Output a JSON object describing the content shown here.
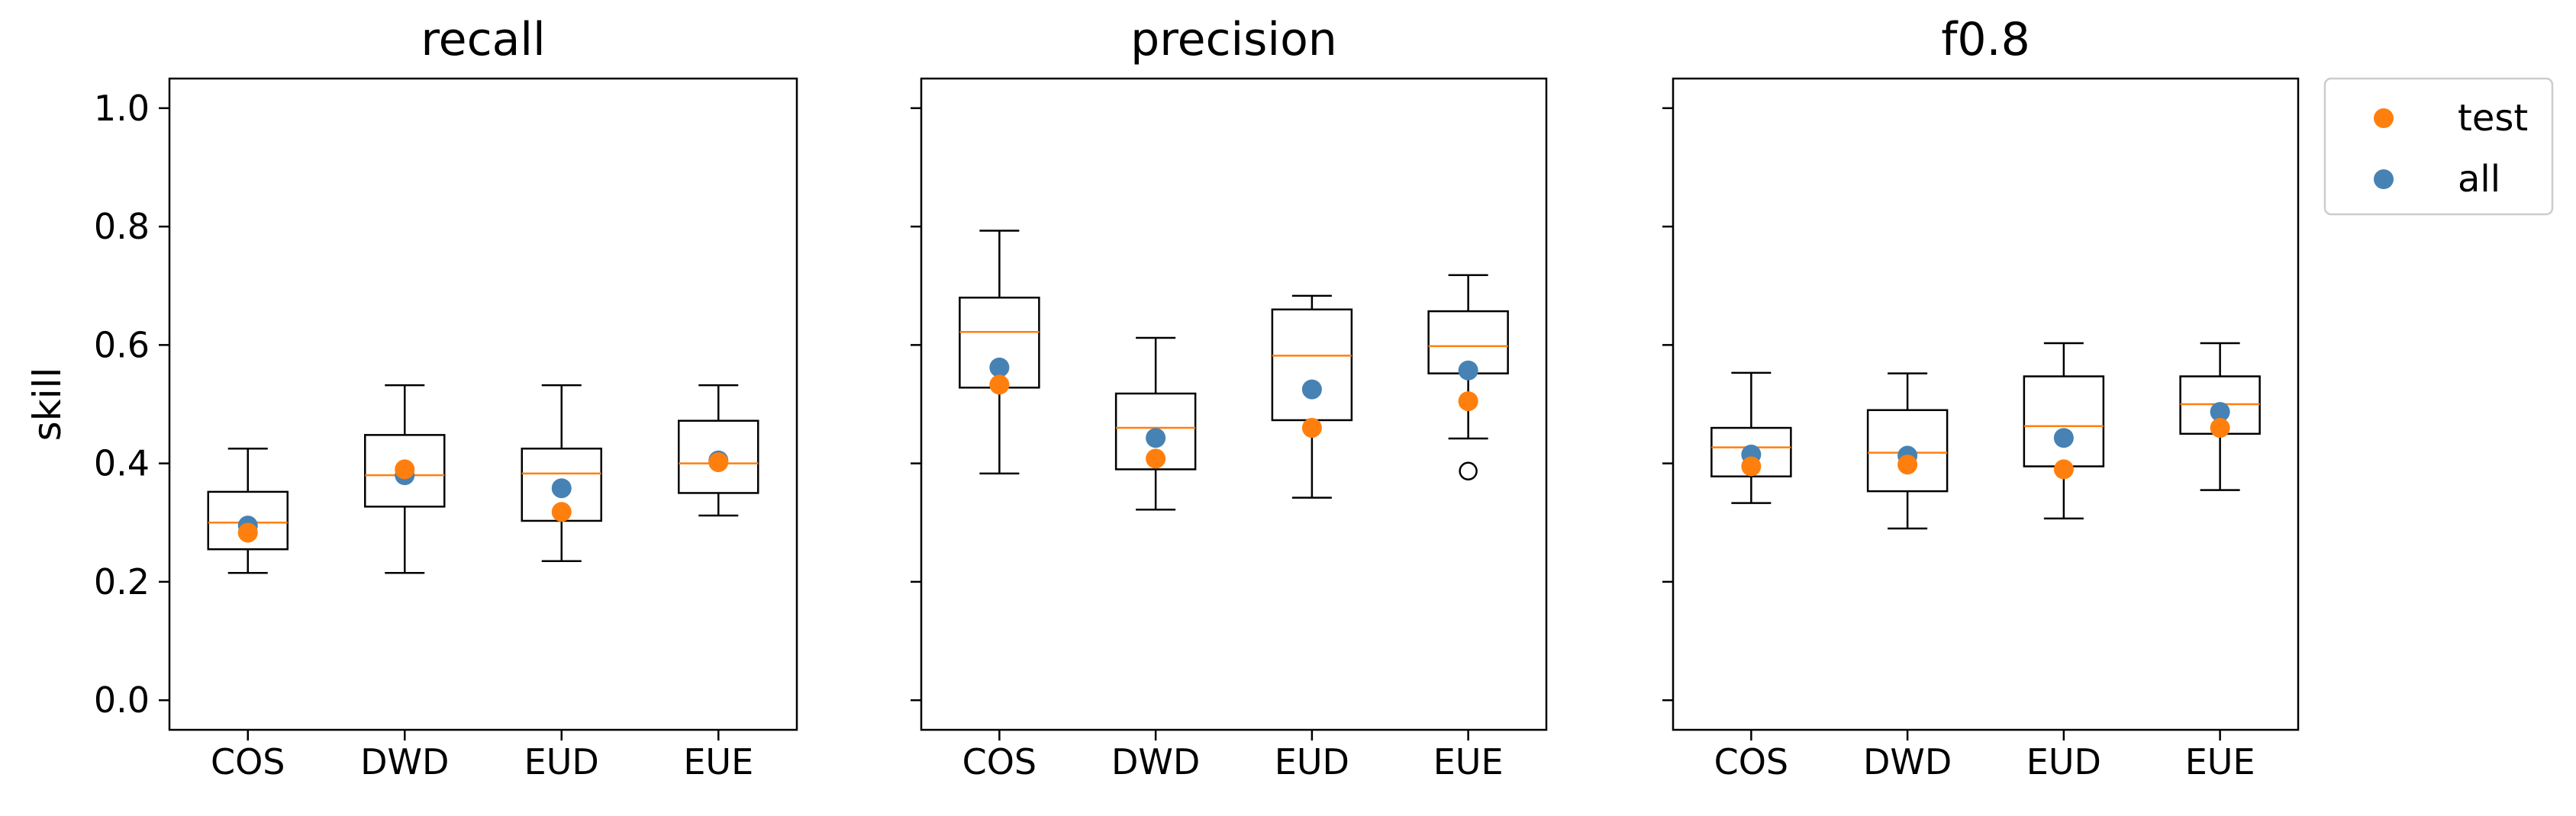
{
  "chart_data": {
    "type": "box",
    "shared_y": true,
    "ylabel": "skill",
    "ylim": [
      -0.05,
      1.05
    ],
    "yticks": [
      0.0,
      0.2,
      0.4,
      0.6,
      0.8,
      1.0
    ],
    "ytick_labels": [
      "0.0",
      "0.2",
      "0.4",
      "0.6",
      "0.8",
      "1.0"
    ],
    "categories": [
      "COS",
      "DWD",
      "EUD",
      "EUE"
    ],
    "legend": {
      "placement": "outside-top-right",
      "entries": [
        {
          "label": "test",
          "color": "#ff7f0e"
        },
        {
          "label": "all",
          "color": "#4682b4"
        }
      ]
    },
    "colors": {
      "median": "#ff7f0e",
      "test": "#ff7f0e",
      "all": "#4682b4",
      "box": "#000000"
    },
    "panels": [
      {
        "title": "recall",
        "boxes": [
          {
            "category": "COS",
            "whisker_low": 0.215,
            "q1": 0.255,
            "median": 0.3,
            "q3": 0.352,
            "whisker_high": 0.425,
            "outliers": [],
            "test": 0.283,
            "all": 0.295
          },
          {
            "category": "DWD",
            "whisker_low": 0.215,
            "q1": 0.327,
            "median": 0.38,
            "q3": 0.448,
            "whisker_high": 0.532,
            "outliers": [],
            "test": 0.39,
            "all": 0.38
          },
          {
            "category": "EUD",
            "whisker_low": 0.235,
            "q1": 0.303,
            "median": 0.383,
            "q3": 0.425,
            "whisker_high": 0.532,
            "outliers": [],
            "test": 0.318,
            "all": 0.358
          },
          {
            "category": "EUE",
            "whisker_low": 0.312,
            "q1": 0.35,
            "median": 0.4,
            "q3": 0.472,
            "whisker_high": 0.532,
            "outliers": [],
            "test": 0.402,
            "all": 0.405
          }
        ]
      },
      {
        "title": "precision",
        "boxes": [
          {
            "category": "COS",
            "whisker_low": 0.383,
            "q1": 0.528,
            "median": 0.622,
            "q3": 0.68,
            "whisker_high": 0.793,
            "outliers": [],
            "test": 0.533,
            "all": 0.562
          },
          {
            "category": "DWD",
            "whisker_low": 0.322,
            "q1": 0.39,
            "median": 0.46,
            "q3": 0.518,
            "whisker_high": 0.612,
            "outliers": [],
            "test": 0.408,
            "all": 0.443
          },
          {
            "category": "EUD",
            "whisker_low": 0.342,
            "q1": 0.473,
            "median": 0.582,
            "q3": 0.66,
            "whisker_high": 0.683,
            "outliers": [],
            "test": 0.46,
            "all": 0.525
          },
          {
            "category": "EUE",
            "whisker_low": 0.442,
            "q1": 0.552,
            "median": 0.598,
            "q3": 0.657,
            "whisker_high": 0.718,
            "outliers": [
              0.387
            ],
            "test": 0.505,
            "all": 0.557
          }
        ]
      },
      {
        "title": "f0.8",
        "boxes": [
          {
            "category": "COS",
            "whisker_low": 0.333,
            "q1": 0.378,
            "median": 0.427,
            "q3": 0.46,
            "whisker_high": 0.553,
            "outliers": [],
            "test": 0.395,
            "all": 0.415
          },
          {
            "category": "DWD",
            "whisker_low": 0.29,
            "q1": 0.353,
            "median": 0.418,
            "q3": 0.49,
            "whisker_high": 0.552,
            "outliers": [],
            "test": 0.398,
            "all": 0.413
          },
          {
            "category": "EUD",
            "whisker_low": 0.307,
            "q1": 0.395,
            "median": 0.463,
            "q3": 0.547,
            "whisker_high": 0.603,
            "outliers": [],
            "test": 0.39,
            "all": 0.443
          },
          {
            "category": "EUE",
            "whisker_low": 0.355,
            "q1": 0.45,
            "median": 0.5,
            "q3": 0.547,
            "whisker_high": 0.603,
            "outliers": [],
            "test": 0.46,
            "all": 0.487
          }
        ]
      }
    ]
  }
}
